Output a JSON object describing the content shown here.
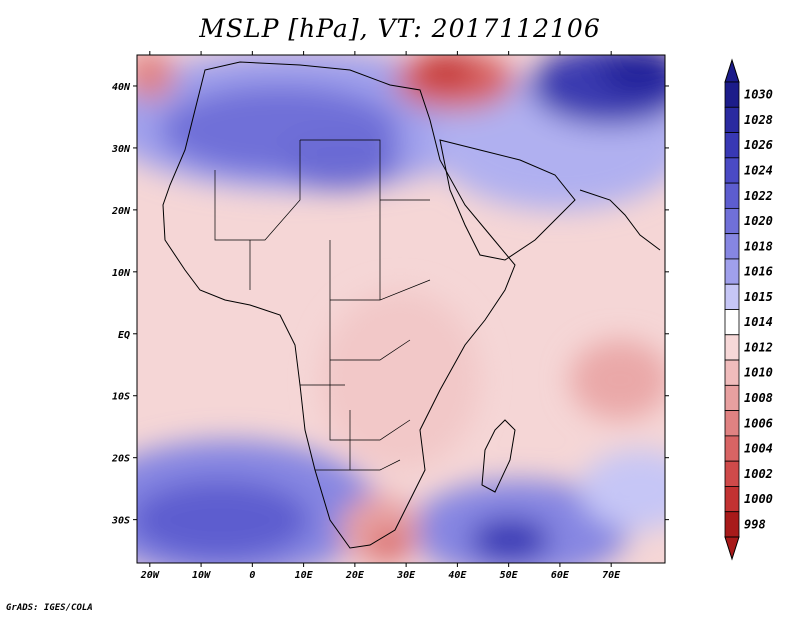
{
  "title": "MSLP [hPa], VT: 2017112106",
  "credit": "GrADS: IGES/COLA",
  "map": {
    "lon_ticks": [
      "20W",
      "10W",
      "0",
      "10E",
      "20E",
      "30E",
      "40E",
      "50E",
      "60E",
      "70E"
    ],
    "lat_ticks": [
      "40N",
      "30N",
      "20N",
      "10N",
      "EQ",
      "10S",
      "20S",
      "30S"
    ]
  },
  "colorbar": {
    "labels": [
      "1030",
      "1028",
      "1026",
      "1024",
      "1022",
      "1020",
      "1018",
      "1016",
      "1015",
      "1014",
      "1012",
      "1010",
      "1008",
      "1006",
      "1004",
      "1002",
      "1000",
      "998"
    ],
    "colors": [
      "#1c1c8a",
      "#2a2aa0",
      "#3838b4",
      "#4a4ac4",
      "#5d5dcf",
      "#7070d8",
      "#8686e2",
      "#a0a0ec",
      "#c6c6f6",
      "#ffffff",
      "#f7d8d8",
      "#f0bcbc",
      "#e8a0a0",
      "#e08282",
      "#d86464",
      "#cf4a4a",
      "#c23232",
      "#a81a1a"
    ]
  }
}
